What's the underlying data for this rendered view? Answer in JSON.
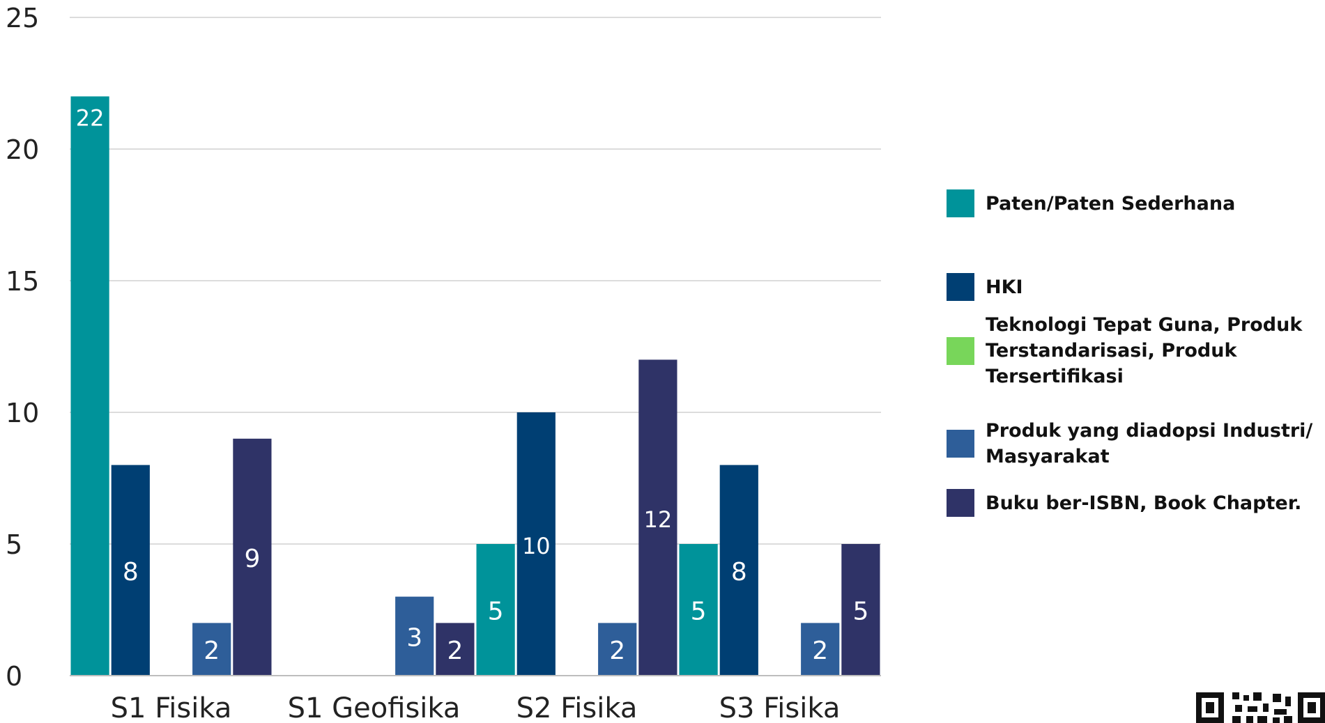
{
  "chart_data": {
    "type": "bar",
    "categories": [
      "S1 Fisika",
      "S1 Geofisika",
      "S2 Fisika",
      "S3 Fisika"
    ],
    "series": [
      {
        "name": "Paten/Paten Sederhana",
        "color": "#00939A",
        "values": [
          22,
          0,
          5,
          5
        ]
      },
      {
        "name": "HKI",
        "color": "#003F73",
        "values": [
          8,
          0,
          10,
          8
        ]
      },
      {
        "name": "Teknologi Tepat Guna, Produk Terstandarisasi, Produk Tersertifikasi",
        "color": "#78D65A",
        "values": [
          0,
          0,
          0,
          0
        ]
      },
      {
        "name": "Produk yang diadopsi Industri/ Masyarakat",
        "color": "#2E5E99",
        "values": [
          2,
          3,
          2,
          2
        ]
      },
      {
        "name": "Buku ber-ISBN, Book Chapter.",
        "color": "#2F3367",
        "values": [
          9,
          2,
          12,
          5
        ]
      }
    ],
    "ylim": [
      0,
      25
    ],
    "yticks": [
      0,
      5,
      10,
      15,
      20,
      25
    ],
    "grid": true,
    "legend_position": "right",
    "title": "",
    "xlabel": "",
    "ylabel": ""
  }
}
